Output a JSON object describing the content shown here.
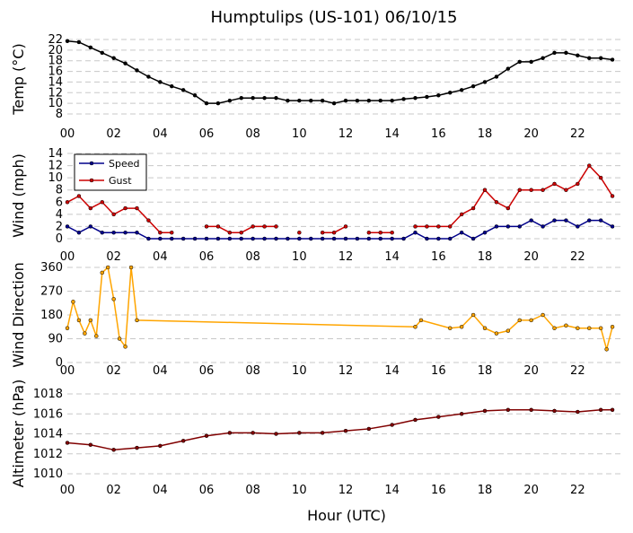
{
  "title": "Humptulips (US-101) 06/10/15",
  "xlabel": "Hour (UTC)",
  "x_ticks": [
    "00",
    "02",
    "04",
    "06",
    "08",
    "10",
    "12",
    "14",
    "16",
    "18",
    "20",
    "22"
  ],
  "chart_data": [
    {
      "type": "line",
      "ylabel": "Temp (°C)",
      "ylim": [
        8,
        22
      ],
      "y_ticks": [
        8,
        10,
        12,
        14,
        16,
        18,
        20,
        22
      ],
      "grid": true,
      "colors": [
        "#000000"
      ],
      "series": [
        {
          "x": [
            0,
            0.5,
            1,
            1.5,
            2,
            2.5,
            3,
            3.5,
            4,
            4.5,
            5,
            5.5,
            6,
            6.5,
            7,
            7.5,
            8,
            8.5,
            9,
            9.5,
            10,
            10.5,
            11,
            11.5,
            12,
            12.5,
            13,
            13.5,
            14,
            14.5,
            15,
            15.5,
            16,
            16.5,
            17,
            17.5,
            18,
            18.5,
            19,
            19.5,
            20,
            20.5,
            21,
            21.5,
            22,
            22.5,
            23,
            23.5
          ],
          "values": [
            21.7,
            21.5,
            20.5,
            19.5,
            18.5,
            17.5,
            16.2,
            15,
            14,
            13.2,
            12.5,
            11.5,
            10,
            10,
            10.5,
            11,
            11,
            11,
            11,
            10.5,
            10.5,
            10.5,
            10.5,
            10,
            10.5,
            10.5,
            10.5,
            10.5,
            10.5,
            10.8,
            11,
            11.2,
            11.5,
            12,
            12.5,
            13.2,
            14,
            15,
            16.5,
            17.8,
            17.8,
            18.5,
            19.5,
            19.5,
            19,
            18.5,
            18.5,
            18.2
          ]
        }
      ]
    },
    {
      "type": "line",
      "ylabel": "Wind (mph)",
      "ylim": [
        0,
        14
      ],
      "y_ticks": [
        0,
        2,
        4,
        6,
        8,
        10,
        12,
        14
      ],
      "grid": true,
      "legend": "top-left",
      "colors": [
        "#00008b",
        "#cc0000"
      ],
      "series": [
        {
          "name": "Speed",
          "x": [
            0,
            0.5,
            1,
            1.5,
            2,
            2.5,
            3,
            3.5,
            4,
            4.5,
            5,
            5.5,
            6,
            6.5,
            7,
            7.5,
            8,
            8.5,
            9,
            9.5,
            10,
            10.5,
            11,
            11.5,
            12,
            12.5,
            13,
            13.5,
            14,
            14.5,
            15,
            15.5,
            16,
            16.5,
            17,
            17.5,
            18,
            18.5,
            19,
            19.5,
            20,
            20.5,
            21,
            21.5,
            22,
            22.5,
            23,
            23.5
          ],
          "values": [
            2,
            1,
            2,
            1,
            1,
            1,
            1,
            0,
            0,
            0,
            0,
            0,
            0,
            0,
            0,
            0,
            0,
            0,
            0,
            0,
            0,
            0,
            0,
            0,
            0,
            0,
            0,
            0,
            0,
            0,
            1,
            0,
            0,
            0,
            1,
            0,
            1,
            2,
            2,
            2,
            3,
            2,
            3,
            3,
            2,
            3,
            3,
            2
          ]
        },
        {
          "name": "Gust",
          "x": [
            0,
            0.5,
            1,
            1.5,
            2,
            2.5,
            3,
            3.5,
            4,
            4.5,
            5,
            5.5,
            6,
            6.5,
            7,
            7.5,
            8,
            8.5,
            9,
            9.5,
            10,
            10.5,
            11,
            11.5,
            12,
            12.5,
            13,
            13.5,
            14,
            14.5,
            15,
            15.5,
            16,
            16.5,
            17,
            17.5,
            18,
            18.5,
            19,
            19.5,
            20,
            20.5,
            21,
            21.5,
            22,
            22.5,
            23,
            23.5
          ],
          "values": [
            6,
            7,
            5,
            6,
            4,
            5,
            5,
            3,
            1,
            1,
            null,
            null,
            2,
            2,
            1,
            1,
            2,
            2,
            2,
            null,
            1,
            null,
            1,
            1,
            2,
            null,
            1,
            1,
            1,
            null,
            2,
            2,
            2,
            2,
            4,
            5,
            8,
            6,
            5,
            8,
            8,
            8,
            9,
            8,
            9,
            12,
            10,
            7
          ]
        }
      ]
    },
    {
      "type": "line",
      "ylabel": "Wind Direction",
      "ylim": [
        0,
        360
      ],
      "y_ticks": [
        0,
        90,
        180,
        270,
        360
      ],
      "grid": true,
      "colors": [
        "#ffa500"
      ],
      "series": [
        {
          "x": [
            0,
            0.25,
            0.5,
            0.75,
            1,
            1.25,
            1.5,
            1.75,
            2,
            2.25,
            2.5,
            2.75,
            3,
            15,
            15.25,
            16.5,
            17,
            17.5,
            18,
            18.5,
            19,
            19.5,
            20,
            20.5,
            21,
            21.5,
            22,
            22.5,
            23,
            23.25,
            23.5
          ],
          "values": [
            130,
            230,
            160,
            110,
            160,
            100,
            340,
            360,
            240,
            90,
            60,
            360,
            160,
            135,
            160,
            130,
            135,
            180,
            130,
            110,
            120,
            160,
            160,
            180,
            130,
            140,
            130,
            130,
            130,
            50,
            135
          ]
        }
      ]
    },
    {
      "type": "line",
      "ylabel": "Altimeter (hPa)",
      "ylim": [
        1010,
        1018
      ],
      "y_ticks": [
        1010,
        1012,
        1014,
        1016,
        1018
      ],
      "grid": true,
      "colors": [
        "#800000"
      ],
      "series": [
        {
          "x": [
            0,
            1,
            2,
            3,
            4,
            5,
            6,
            7,
            8,
            9,
            10,
            11,
            12,
            13,
            14,
            15,
            16,
            17,
            18,
            19,
            20,
            21,
            22,
            23,
            23.5
          ],
          "values": [
            1013.1,
            1012.9,
            1012.4,
            1012.6,
            1012.8,
            1013.3,
            1013.8,
            1014.1,
            1014.1,
            1014.0,
            1014.1,
            1014.1,
            1014.3,
            1014.5,
            1014.9,
            1015.4,
            1015.7,
            1016.0,
            1016.3,
            1016.4,
            1016.4,
            1016.3,
            1016.2,
            1016.4,
            1016.4
          ]
        }
      ]
    }
  ]
}
